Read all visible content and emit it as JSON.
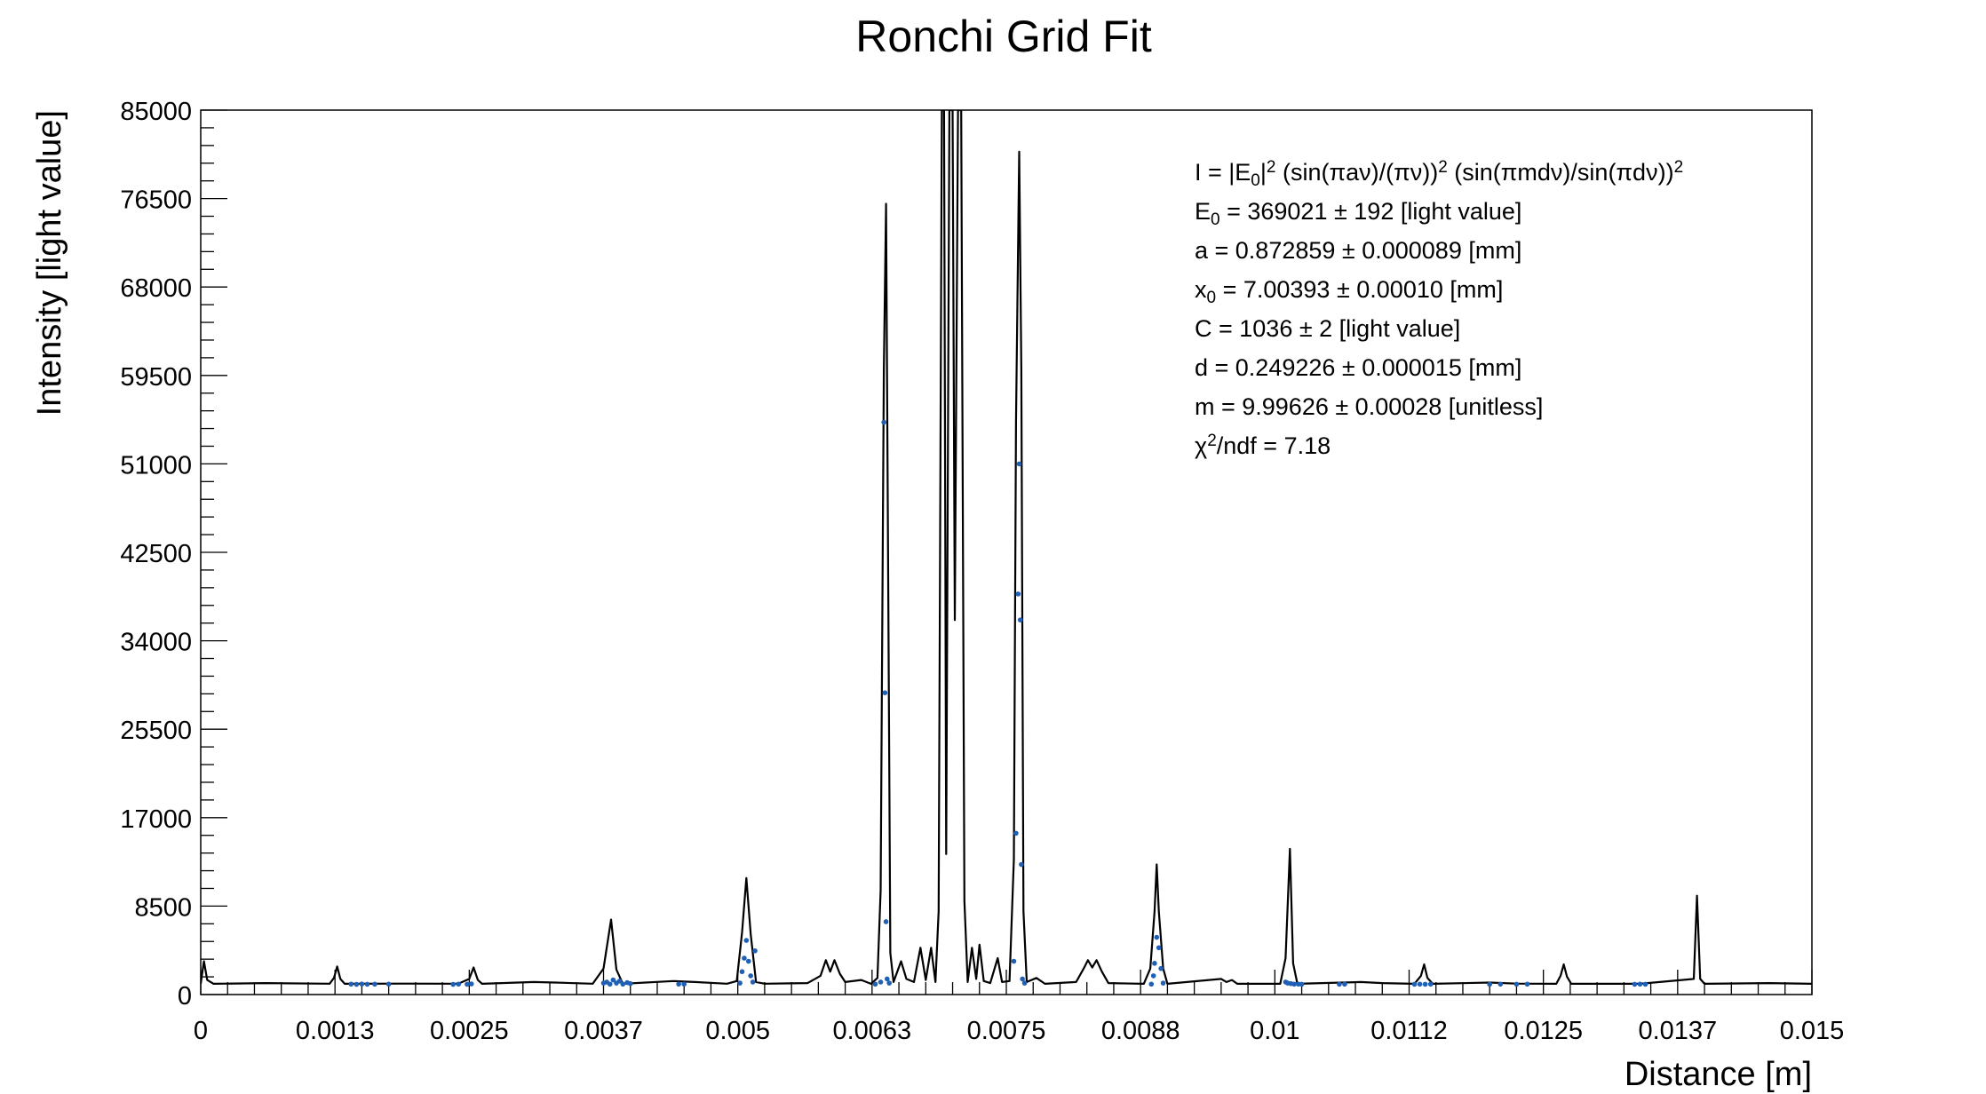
{
  "chart_data": {
    "type": "line",
    "title": "Ronchi Grid Fit",
    "xlabel": "Distance [m]",
    "ylabel": "Intensity [light value]",
    "xlim": [
      0,
      0.015
    ],
    "ylim": [
      0,
      85000
    ],
    "x_ticks": [
      "0",
      "0.0013",
      "0.0025",
      "0.0037",
      "0.005",
      "0.0063",
      "0.0075",
      "0.0088",
      "0.01",
      "0.0112",
      "0.0125",
      "0.0137",
      "0.015"
    ],
    "y_ticks": [
      "0",
      "8500",
      "17000",
      "25500",
      "34000",
      "42500",
      "51000",
      "59500",
      "68000",
      "76500",
      "85000"
    ],
    "grid": false,
    "legend": "none",
    "colors": {
      "fit_line": "#000000",
      "data_points": "#1f5fb4"
    },
    "fit_params": {
      "E0": 369021,
      "a_mm": 0.872859,
      "x0_mm": 7.00393,
      "C": 1036,
      "d_mm": 0.249226,
      "m": 9.99626,
      "chi2_ndf": 7.18
    },
    "annotations": [
      {
        "id": "formula",
        "segments": [
          {
            "t": "I = |E"
          },
          {
            "t": "0",
            "sub": true
          },
          {
            "t": "|"
          },
          {
            "t": "2",
            "sup": true
          },
          {
            "t": " (sin(πaν)/(πν))"
          },
          {
            "t": "2",
            "sup": true
          },
          {
            "t": " (sin(πmdν)/sin(πdν))"
          },
          {
            "t": "2",
            "sup": true
          }
        ]
      },
      {
        "id": "E0",
        "segments": [
          {
            "t": "E"
          },
          {
            "t": "0",
            "sub": true
          },
          {
            "t": " = 369021 ± 192 [light value]"
          }
        ]
      },
      {
        "id": "a",
        "segments": [
          {
            "t": "a = 0.872859 ± 0.000089 [mm]"
          }
        ]
      },
      {
        "id": "x0",
        "segments": [
          {
            "t": "x"
          },
          {
            "t": "0",
            "sub": true
          },
          {
            "t": " = 7.00393 ± 0.00010 [mm]"
          }
        ]
      },
      {
        "id": "C",
        "segments": [
          {
            "t": "C = 1036 ± 2 [light value]"
          }
        ]
      },
      {
        "id": "d",
        "segments": [
          {
            "t": "d = 0.249226 ± 0.000015 [mm]"
          }
        ]
      },
      {
        "id": "m",
        "segments": [
          {
            "t": "m = 9.99626 ± 0.00028 [unitless]"
          }
        ]
      },
      {
        "id": "chi2",
        "segments": [
          {
            "t": "χ"
          },
          {
            "t": "2",
            "sup": true
          },
          {
            "t": "/ndf = 7.18"
          }
        ]
      }
    ],
    "data_points": [
      [
        0.0014,
        1000
      ],
      [
        0.00145,
        980
      ],
      [
        0.0015,
        1010
      ],
      [
        0.00155,
        990
      ],
      [
        0.00162,
        1000
      ],
      [
        0.00175,
        1000
      ],
      [
        0.00235,
        980
      ],
      [
        0.0024,
        1000
      ],
      [
        0.00248,
        990
      ],
      [
        0.00252,
        1020
      ],
      [
        0.00375,
        1100
      ],
      [
        0.00378,
        1200
      ],
      [
        0.00381,
        1000
      ],
      [
        0.00384,
        1400
      ],
      [
        0.00387,
        1100
      ],
      [
        0.0039,
        1300
      ],
      [
        0.00393,
        1000
      ],
      [
        0.00397,
        1150
      ],
      [
        0.004,
        1050
      ],
      [
        0.00445,
        1000
      ],
      [
        0.0045,
        1000
      ],
      [
        0.00502,
        1100
      ],
      [
        0.00504,
        2200
      ],
      [
        0.00506,
        3500
      ],
      [
        0.00508,
        5200
      ],
      [
        0.0051,
        3200
      ],
      [
        0.00512,
        1800
      ],
      [
        0.00514,
        1200
      ],
      [
        0.00516,
        4200
      ],
      [
        0.00628,
        1000
      ],
      [
        0.00633,
        1200
      ],
      [
        0.00636,
        55000
      ],
      [
        0.00637,
        29000
      ],
      [
        0.00638,
        7000
      ],
      [
        0.00639,
        1500
      ],
      [
        0.00641,
        1100
      ],
      [
        0.00757,
        3200
      ],
      [
        0.00759,
        15500
      ],
      [
        0.00761,
        38500
      ],
      [
        0.00762,
        51000
      ],
      [
        0.00763,
        36000
      ],
      [
        0.00764,
        12500
      ],
      [
        0.00765,
        1500
      ],
      [
        0.00767,
        1100
      ],
      [
        0.00885,
        1000
      ],
      [
        0.00887,
        1800
      ],
      [
        0.00888,
        3000
      ],
      [
        0.0089,
        5500
      ],
      [
        0.00892,
        4500
      ],
      [
        0.00894,
        2500
      ],
      [
        0.00896,
        1100
      ],
      [
        0.0101,
        1200
      ],
      [
        0.01012,
        1100
      ],
      [
        0.01015,
        1050
      ],
      [
        0.01018,
        1000
      ],
      [
        0.01022,
        1000
      ],
      [
        0.01025,
        990
      ],
      [
        0.0106,
        990
      ],
      [
        0.01065,
        1000
      ],
      [
        0.0113,
        990
      ],
      [
        0.01135,
        1000
      ],
      [
        0.0114,
        990
      ],
      [
        0.01145,
        1000
      ],
      [
        0.012,
        990
      ],
      [
        0.0121,
        1000
      ],
      [
        0.01225,
        990
      ],
      [
        0.01235,
        1000
      ],
      [
        0.01335,
        990
      ],
      [
        0.0134,
        1000
      ],
      [
        0.01345,
        990
      ]
    ],
    "fit_curve": [
      [
        0.0,
        1036
      ],
      [
        3e-05,
        3200
      ],
      [
        6e-05,
        1400
      ],
      [
        0.00012,
        1036
      ],
      [
        0.0006,
        1100
      ],
      [
        0.0012,
        1040
      ],
      [
        0.00124,
        1600
      ],
      [
        0.00127,
        2700
      ],
      [
        0.0013,
        1500
      ],
      [
        0.00134,
        1036
      ],
      [
        0.0019,
        1050
      ],
      [
        0.0024,
        1040
      ],
      [
        0.0025,
        1500
      ],
      [
        0.00254,
        2600
      ],
      [
        0.00258,
        1400
      ],
      [
        0.00262,
        1036
      ],
      [
        0.0031,
        1200
      ],
      [
        0.0033,
        1150
      ],
      [
        0.00365,
        1040
      ],
      [
        0.00375,
        2500
      ],
      [
        0.00382,
        7200
      ],
      [
        0.00387,
        2400
      ],
      [
        0.00393,
        1036
      ],
      [
        0.0044,
        1300
      ],
      [
        0.0046,
        1200
      ],
      [
        0.0049,
        1040
      ],
      [
        0.00499,
        1300
      ],
      [
        0.00504,
        6000
      ],
      [
        0.00508,
        11200
      ],
      [
        0.00512,
        5800
      ],
      [
        0.00517,
        1200
      ],
      [
        0.00525,
        1040
      ],
      [
        0.00565,
        1100
      ],
      [
        0.00577,
        1800
      ],
      [
        0.00582,
        3300
      ],
      [
        0.00586,
        2200
      ],
      [
        0.0059,
        3300
      ],
      [
        0.00595,
        2000
      ],
      [
        0.006,
        1200
      ],
      [
        0.00615,
        1400
      ],
      [
        0.00624,
        1036
      ],
      [
        0.0063,
        1600
      ],
      [
        0.00633,
        10000
      ],
      [
        0.00636,
        60000
      ],
      [
        0.00638,
        76000
      ],
      [
        0.0064,
        40000
      ],
      [
        0.00642,
        4000
      ],
      [
        0.00645,
        1200
      ],
      [
        0.00652,
        3200
      ],
      [
        0.00657,
        1500
      ],
      [
        0.00664,
        1200
      ],
      [
        0.0067,
        4500
      ],
      [
        0.00675,
        1400
      ],
      [
        0.0068,
        4500
      ],
      [
        0.00684,
        1200
      ],
      [
        0.00687,
        8000
      ],
      [
        0.0069,
        85000
      ],
      [
        0.00692,
        85000
      ],
      [
        0.00694,
        13500
      ],
      [
        0.00697,
        85000
      ],
      [
        0.007,
        85000
      ],
      [
        0.00702,
        36000
      ],
      [
        0.00705,
        85000
      ],
      [
        0.00708,
        85000
      ],
      [
        0.00711,
        9000
      ],
      [
        0.00714,
        1200
      ],
      [
        0.00718,
        4500
      ],
      [
        0.00722,
        1500
      ],
      [
        0.00725,
        4800
      ],
      [
        0.00729,
        1300
      ],
      [
        0.00735,
        1100
      ],
      [
        0.00742,
        3500
      ],
      [
        0.00746,
        1200
      ],
      [
        0.00753,
        1300
      ],
      [
        0.00757,
        13000
      ],
      [
        0.00759,
        55000
      ],
      [
        0.00762,
        81000
      ],
      [
        0.00764,
        60000
      ],
      [
        0.00766,
        8000
      ],
      [
        0.00769,
        1200
      ],
      [
        0.00778,
        1600
      ],
      [
        0.00786,
        1036
      ],
      [
        0.00815,
        1200
      ],
      [
        0.00822,
        2500
      ],
      [
        0.00826,
        3300
      ],
      [
        0.0083,
        2600
      ],
      [
        0.00834,
        3300
      ],
      [
        0.00839,
        2200
      ],
      [
        0.00845,
        1100
      ],
      [
        0.00878,
        1036
      ],
      [
        0.00884,
        2500
      ],
      [
        0.00888,
        8000
      ],
      [
        0.0089,
        12500
      ],
      [
        0.00892,
        8000
      ],
      [
        0.00896,
        2500
      ],
      [
        0.009,
        1036
      ],
      [
        0.0095,
        1500
      ],
      [
        0.00955,
        1200
      ],
      [
        0.0096,
        1400
      ],
      [
        0.00965,
        1036
      ],
      [
        0.01005,
        1036
      ],
      [
        0.0101,
        3500
      ],
      [
        0.01014,
        14000
      ],
      [
        0.01017,
        3000
      ],
      [
        0.01021,
        1036
      ],
      [
        0.0108,
        1200
      ],
      [
        0.011,
        1100
      ],
      [
        0.0113,
        1036
      ],
      [
        0.01136,
        1800
      ],
      [
        0.01139,
        2900
      ],
      [
        0.01142,
        1600
      ],
      [
        0.01147,
        1036
      ],
      [
        0.012,
        1150
      ],
      [
        0.01225,
        1050
      ],
      [
        0.01262,
        1036
      ],
      [
        0.01266,
        1800
      ],
      [
        0.01269,
        2900
      ],
      [
        0.01272,
        1700
      ],
      [
        0.01276,
        1036
      ],
      [
        0.0134,
        1036
      ],
      [
        0.0139,
        1500
      ],
      [
        0.01393,
        9500
      ],
      [
        0.01396,
        1500
      ],
      [
        0.014,
        1036
      ],
      [
        0.0146,
        1100
      ],
      [
        0.015,
        1036
      ]
    ]
  }
}
